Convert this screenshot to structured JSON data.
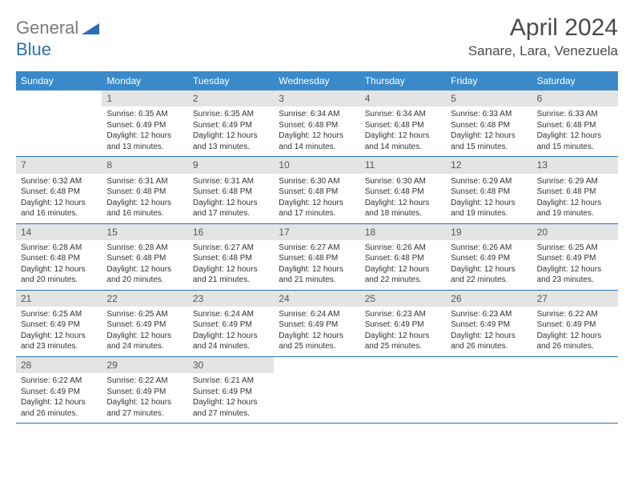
{
  "logo": {
    "text_gray": "General",
    "text_blue": "Blue"
  },
  "title": "April 2024",
  "location": "Sanare, Lara, Venezuela",
  "colors": {
    "header_bg": "#3a8ac9",
    "daynum_bg": "#e4e4e4",
    "rule": "#2a6fb5",
    "text": "#333333"
  },
  "day_names": [
    "Sunday",
    "Monday",
    "Tuesday",
    "Wednesday",
    "Thursday",
    "Friday",
    "Saturday"
  ],
  "weeks": [
    [
      {
        "n": "",
        "sr": "",
        "ss": "",
        "dl": ""
      },
      {
        "n": "1",
        "sr": "6:35 AM",
        "ss": "6:49 PM",
        "dl": "12 hours and 13 minutes."
      },
      {
        "n": "2",
        "sr": "6:35 AM",
        "ss": "6:49 PM",
        "dl": "12 hours and 13 minutes."
      },
      {
        "n": "3",
        "sr": "6:34 AM",
        "ss": "6:48 PM",
        "dl": "12 hours and 14 minutes."
      },
      {
        "n": "4",
        "sr": "6:34 AM",
        "ss": "6:48 PM",
        "dl": "12 hours and 14 minutes."
      },
      {
        "n": "5",
        "sr": "6:33 AM",
        "ss": "6:48 PM",
        "dl": "12 hours and 15 minutes."
      },
      {
        "n": "6",
        "sr": "6:33 AM",
        "ss": "6:48 PM",
        "dl": "12 hours and 15 minutes."
      }
    ],
    [
      {
        "n": "7",
        "sr": "6:32 AM",
        "ss": "6:48 PM",
        "dl": "12 hours and 16 minutes."
      },
      {
        "n": "8",
        "sr": "6:31 AM",
        "ss": "6:48 PM",
        "dl": "12 hours and 16 minutes."
      },
      {
        "n": "9",
        "sr": "6:31 AM",
        "ss": "6:48 PM",
        "dl": "12 hours and 17 minutes."
      },
      {
        "n": "10",
        "sr": "6:30 AM",
        "ss": "6:48 PM",
        "dl": "12 hours and 17 minutes."
      },
      {
        "n": "11",
        "sr": "6:30 AM",
        "ss": "6:48 PM",
        "dl": "12 hours and 18 minutes."
      },
      {
        "n": "12",
        "sr": "6:29 AM",
        "ss": "6:48 PM",
        "dl": "12 hours and 19 minutes."
      },
      {
        "n": "13",
        "sr": "6:29 AM",
        "ss": "6:48 PM",
        "dl": "12 hours and 19 minutes."
      }
    ],
    [
      {
        "n": "14",
        "sr": "6:28 AM",
        "ss": "6:48 PM",
        "dl": "12 hours and 20 minutes."
      },
      {
        "n": "15",
        "sr": "6:28 AM",
        "ss": "6:48 PM",
        "dl": "12 hours and 20 minutes."
      },
      {
        "n": "16",
        "sr": "6:27 AM",
        "ss": "6:48 PM",
        "dl": "12 hours and 21 minutes."
      },
      {
        "n": "17",
        "sr": "6:27 AM",
        "ss": "6:48 PM",
        "dl": "12 hours and 21 minutes."
      },
      {
        "n": "18",
        "sr": "6:26 AM",
        "ss": "6:48 PM",
        "dl": "12 hours and 22 minutes."
      },
      {
        "n": "19",
        "sr": "6:26 AM",
        "ss": "6:49 PM",
        "dl": "12 hours and 22 minutes."
      },
      {
        "n": "20",
        "sr": "6:25 AM",
        "ss": "6:49 PM",
        "dl": "12 hours and 23 minutes."
      }
    ],
    [
      {
        "n": "21",
        "sr": "6:25 AM",
        "ss": "6:49 PM",
        "dl": "12 hours and 23 minutes."
      },
      {
        "n": "22",
        "sr": "6:25 AM",
        "ss": "6:49 PM",
        "dl": "12 hours and 24 minutes."
      },
      {
        "n": "23",
        "sr": "6:24 AM",
        "ss": "6:49 PM",
        "dl": "12 hours and 24 minutes."
      },
      {
        "n": "24",
        "sr": "6:24 AM",
        "ss": "6:49 PM",
        "dl": "12 hours and 25 minutes."
      },
      {
        "n": "25",
        "sr": "6:23 AM",
        "ss": "6:49 PM",
        "dl": "12 hours and 25 minutes."
      },
      {
        "n": "26",
        "sr": "6:23 AM",
        "ss": "6:49 PM",
        "dl": "12 hours and 26 minutes."
      },
      {
        "n": "27",
        "sr": "6:22 AM",
        "ss": "6:49 PM",
        "dl": "12 hours and 26 minutes."
      }
    ],
    [
      {
        "n": "28",
        "sr": "6:22 AM",
        "ss": "6:49 PM",
        "dl": "12 hours and 26 minutes."
      },
      {
        "n": "29",
        "sr": "6:22 AM",
        "ss": "6:49 PM",
        "dl": "12 hours and 27 minutes."
      },
      {
        "n": "30",
        "sr": "6:21 AM",
        "ss": "6:49 PM",
        "dl": "12 hours and 27 minutes."
      },
      {
        "n": "",
        "sr": "",
        "ss": "",
        "dl": ""
      },
      {
        "n": "",
        "sr": "",
        "ss": "",
        "dl": ""
      },
      {
        "n": "",
        "sr": "",
        "ss": "",
        "dl": ""
      },
      {
        "n": "",
        "sr": "",
        "ss": "",
        "dl": ""
      }
    ]
  ],
  "labels": {
    "sunrise": "Sunrise: ",
    "sunset": "Sunset: ",
    "daylight": "Daylight: "
  }
}
